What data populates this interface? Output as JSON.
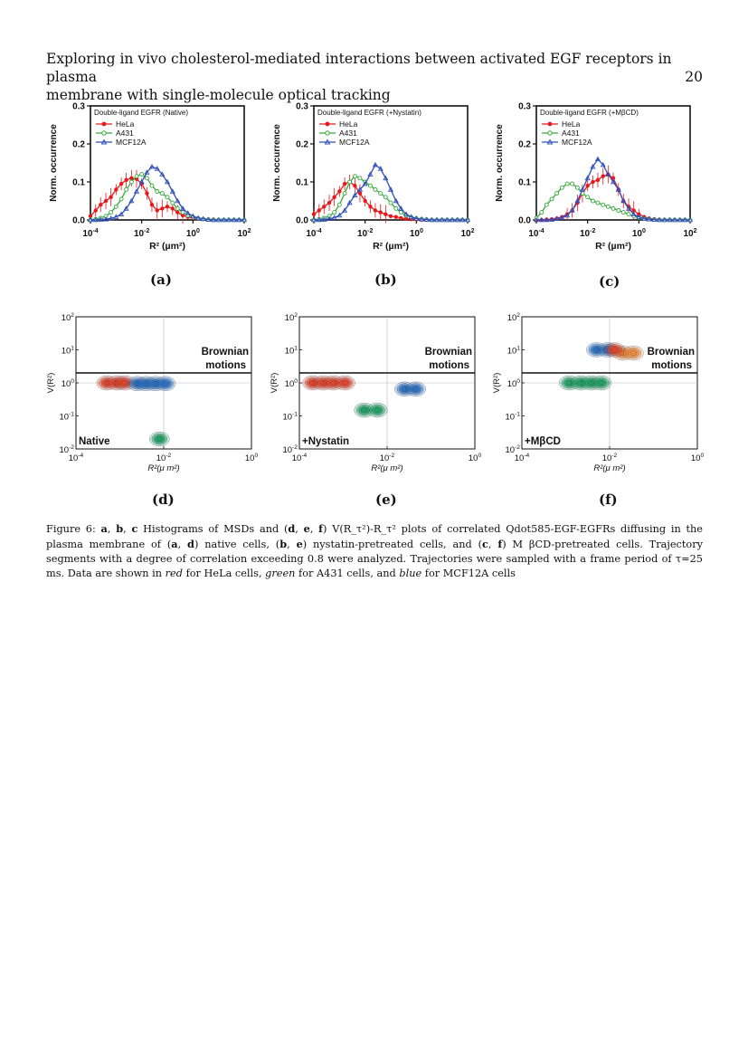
{
  "header": {
    "title_line1": "Exploring in vivo cholesterol-mediated interactions between activated EGF receptors in plasma",
    "title_line2": "membrane with single-molecule optical tracking",
    "page_number": "20"
  },
  "sublabels": [
    "(a)",
    "(b)",
    "(c)",
    "(d)",
    "(e)",
    "(f)"
  ],
  "chart_data": [
    {
      "id": "a",
      "type": "line",
      "title": "Double-ligand EGFR (Native)",
      "xlabel": "R² (µm²)",
      "ylabel": "Norm. occurrence",
      "xscale": "log",
      "xlim": [
        0.0001,
        100
      ],
      "ylim": [
        0,
        0.3
      ],
      "xticks": [
        "10-4",
        "10-2",
        "100",
        "102"
      ],
      "yticks": [
        "0.0",
        "0.1",
        "0.2",
        "0.3"
      ],
      "legend": "top-left",
      "series": [
        {
          "name": "HeLa",
          "color": "#e8191b",
          "x": [
            0.0001,
            0.00016,
            0.00025,
            0.0004,
            0.00063,
            0.001,
            0.0016,
            0.0025,
            0.004,
            0.0063,
            0.01,
            0.016,
            0.025,
            0.04,
            0.063,
            0.1,
            0.16,
            0.25,
            0.4,
            0.63,
            1,
            1.6,
            2.5,
            4,
            6.3,
            10,
            16,
            25,
            40,
            63,
            100
          ],
          "y": [
            0.01,
            0.025,
            0.04,
            0.05,
            0.06,
            0.08,
            0.095,
            0.105,
            0.11,
            0.108,
            0.095,
            0.07,
            0.04,
            0.025,
            0.03,
            0.035,
            0.03,
            0.02,
            0.012,
            0.008,
            0.005,
            0.003,
            0.002,
            0.001,
            0.001,
            0.0,
            0.0,
            0.0,
            0.0,
            0.0,
            0.0
          ]
        },
        {
          "name": "A431",
          "color": "#35a83a",
          "x": [
            0.0001,
            0.00016,
            0.00025,
            0.0004,
            0.00063,
            0.001,
            0.0016,
            0.0025,
            0.004,
            0.0063,
            0.01,
            0.016,
            0.025,
            0.04,
            0.063,
            0.1,
            0.16,
            0.25,
            0.4,
            0.63,
            1,
            1.6,
            2.5,
            4,
            6.3,
            10,
            16,
            25,
            40,
            63,
            100
          ],
          "y": [
            0.0,
            0.002,
            0.005,
            0.01,
            0.02,
            0.035,
            0.055,
            0.08,
            0.1,
            0.115,
            0.12,
            0.11,
            0.09,
            0.075,
            0.07,
            0.06,
            0.045,
            0.03,
            0.02,
            0.012,
            0.007,
            0.004,
            0.002,
            0.001,
            0.0,
            0.0,
            0.0,
            0.0,
            0.0,
            0.0,
            0.0
          ]
        },
        {
          "name": "MCF12A",
          "color": "#2f4fb8",
          "x": [
            0.0001,
            0.00016,
            0.00025,
            0.0004,
            0.00063,
            0.001,
            0.0016,
            0.0025,
            0.004,
            0.0063,
            0.01,
            0.016,
            0.025,
            0.04,
            0.063,
            0.1,
            0.16,
            0.25,
            0.4,
            0.63,
            1,
            1.6,
            2.5,
            4,
            6.3,
            10,
            16,
            25,
            40,
            63,
            100
          ],
          "y": [
            0.0,
            0.0,
            0.001,
            0.002,
            0.004,
            0.008,
            0.015,
            0.03,
            0.05,
            0.075,
            0.1,
            0.125,
            0.14,
            0.135,
            0.12,
            0.1,
            0.075,
            0.05,
            0.03,
            0.018,
            0.01,
            0.005,
            0.003,
            0.001,
            0.0,
            0.0,
            0.0,
            0.0,
            0.0,
            0.0,
            0.0
          ]
        }
      ]
    },
    {
      "id": "b",
      "type": "line",
      "title": "Double-ligand EGFR (+Nystatin)",
      "xlabel": "R² (µm²)",
      "ylabel": "Norm. occurrence",
      "xscale": "log",
      "xlim": [
        0.0001,
        100
      ],
      "ylim": [
        0,
        0.3
      ],
      "xticks": [
        "10-4",
        "10-2",
        "100",
        "102"
      ],
      "yticks": [
        "0.0",
        "0.1",
        "0.2",
        "0.3"
      ],
      "legend": "top-left",
      "series": [
        {
          "name": "HeLa",
          "color": "#e8191b",
          "x": [
            0.0001,
            0.00016,
            0.00025,
            0.0004,
            0.00063,
            0.001,
            0.0016,
            0.0025,
            0.004,
            0.0063,
            0.01,
            0.016,
            0.025,
            0.04,
            0.063,
            0.1,
            0.16,
            0.25,
            0.4,
            0.63,
            1,
            1.6,
            2.5,
            4,
            6.3,
            10,
            16,
            25,
            40,
            63,
            100
          ],
          "y": [
            0.015,
            0.025,
            0.035,
            0.045,
            0.06,
            0.075,
            0.095,
            0.1,
            0.09,
            0.07,
            0.05,
            0.035,
            0.025,
            0.02,
            0.015,
            0.01,
            0.008,
            0.005,
            0.003,
            0.002,
            0.001,
            0.0,
            0.0,
            0.0,
            0.0,
            0.0,
            0.0,
            0.0,
            0.0,
            0.0,
            0.0
          ]
        },
        {
          "name": "A431",
          "color": "#35a83a",
          "x": [
            0.0001,
            0.00016,
            0.00025,
            0.0004,
            0.00063,
            0.001,
            0.0016,
            0.0025,
            0.004,
            0.0063,
            0.01,
            0.016,
            0.025,
            0.04,
            0.063,
            0.1,
            0.16,
            0.25,
            0.4,
            0.63,
            1,
            1.6,
            2.5,
            4,
            6.3,
            10,
            16,
            25,
            40,
            63,
            100
          ],
          "y": [
            0.0,
            0.002,
            0.005,
            0.01,
            0.02,
            0.04,
            0.07,
            0.1,
            0.115,
            0.11,
            0.1,
            0.09,
            0.08,
            0.07,
            0.06,
            0.045,
            0.03,
            0.02,
            0.012,
            0.007,
            0.004,
            0.002,
            0.001,
            0.0,
            0.0,
            0.0,
            0.0,
            0.0,
            0.0,
            0.0,
            0.0
          ]
        },
        {
          "name": "MCF12A",
          "color": "#2f4fb8",
          "x": [
            0.0001,
            0.00016,
            0.00025,
            0.0004,
            0.00063,
            0.001,
            0.0016,
            0.0025,
            0.004,
            0.0063,
            0.01,
            0.016,
            0.025,
            0.04,
            0.063,
            0.1,
            0.16,
            0.25,
            0.4,
            0.63,
            1,
            1.6,
            2.5,
            4,
            6.3,
            10,
            16,
            25,
            40,
            63,
            100
          ],
          "y": [
            0.0,
            0.0,
            0.001,
            0.003,
            0.006,
            0.012,
            0.025,
            0.045,
            0.065,
            0.08,
            0.095,
            0.12,
            0.145,
            0.135,
            0.11,
            0.08,
            0.05,
            0.03,
            0.015,
            0.008,
            0.004,
            0.002,
            0.001,
            0.0,
            0.0,
            0.0,
            0.0,
            0.0,
            0.0,
            0.0,
            0.0
          ]
        }
      ]
    },
    {
      "id": "c",
      "type": "line",
      "title": "Double-ligand EGFR (+MβCD)",
      "xlabel": "R² (µm²)",
      "ylabel": "Norm. occurrence",
      "xscale": "log",
      "xlim": [
        0.0001,
        100
      ],
      "ylim": [
        0,
        0.3
      ],
      "xticks": [
        "10-4",
        "10-2",
        "100",
        "102"
      ],
      "yticks": [
        "0.0",
        "0.1",
        "0.2",
        "0.3"
      ],
      "legend": "top-left",
      "series": [
        {
          "name": "HeLa",
          "color": "#e8191b",
          "x": [
            0.0001,
            0.00016,
            0.00025,
            0.0004,
            0.00063,
            0.001,
            0.0016,
            0.0025,
            0.004,
            0.0063,
            0.01,
            0.016,
            0.025,
            0.04,
            0.063,
            0.1,
            0.16,
            0.25,
            0.4,
            0.63,
            1,
            1.6,
            2.5,
            4,
            6.3,
            10,
            16,
            25,
            40,
            63,
            100
          ],
          "y": [
            0.0,
            0.0,
            0.001,
            0.002,
            0.004,
            0.008,
            0.015,
            0.025,
            0.045,
            0.07,
            0.09,
            0.1,
            0.105,
            0.115,
            0.12,
            0.11,
            0.08,
            0.05,
            0.035,
            0.025,
            0.015,
            0.008,
            0.004,
            0.002,
            0.001,
            0.0,
            0.0,
            0.0,
            0.0,
            0.0,
            0.0
          ]
        },
        {
          "name": "A431",
          "color": "#35a83a",
          "x": [
            0.0001,
            0.00016,
            0.00025,
            0.0004,
            0.00063,
            0.001,
            0.0016,
            0.0025,
            0.004,
            0.0063,
            0.01,
            0.016,
            0.025,
            0.04,
            0.063,
            0.1,
            0.16,
            0.25,
            0.4,
            0.63,
            1,
            1.6,
            2.5,
            4,
            6.3,
            10,
            16,
            25,
            40,
            63,
            100
          ],
          "y": [
            0.005,
            0.02,
            0.04,
            0.055,
            0.07,
            0.085,
            0.095,
            0.095,
            0.085,
            0.07,
            0.06,
            0.05,
            0.045,
            0.04,
            0.035,
            0.03,
            0.025,
            0.02,
            0.015,
            0.01,
            0.006,
            0.004,
            0.002,
            0.001,
            0.0,
            0.0,
            0.0,
            0.0,
            0.0,
            0.0,
            0.0
          ]
        },
        {
          "name": "MCF12A",
          "color": "#2f4fb8",
          "x": [
            0.0001,
            0.00016,
            0.00025,
            0.0004,
            0.00063,
            0.001,
            0.0016,
            0.0025,
            0.004,
            0.0063,
            0.01,
            0.016,
            0.025,
            0.04,
            0.063,
            0.1,
            0.16,
            0.25,
            0.4,
            0.63,
            1,
            1.6,
            2.5,
            4,
            6.3,
            10,
            16,
            25,
            40,
            63,
            100
          ],
          "y": [
            0.0,
            0.0,
            0.0,
            0.001,
            0.003,
            0.006,
            0.012,
            0.025,
            0.05,
            0.08,
            0.11,
            0.14,
            0.16,
            0.145,
            0.12,
            0.1,
            0.08,
            0.05,
            0.03,
            0.015,
            0.008,
            0.004,
            0.002,
            0.001,
            0.0,
            0.0,
            0.0,
            0.0,
            0.0,
            0.0,
            0.0
          ]
        }
      ]
    },
    {
      "id": "d",
      "type": "heatmap",
      "label": "Native",
      "annotation": "Brownian motions",
      "annotation_line1": "Brownian",
      "annotation_line2": "motions",
      "xlabel": "R²(μ m²)",
      "ylabel": "V(R²)",
      "xscale": "log",
      "yscale": "log",
      "xlim": [
        0.0001,
        1
      ],
      "ylim": [
        0.01,
        100
      ],
      "xticks": [
        "10-4",
        "10-2",
        "100"
      ],
      "yticks": [
        "10-2",
        "10-1",
        "100",
        "101",
        "102"
      ],
      "threshold_y": 2,
      "clusters": [
        {
          "color": "#e1452a",
          "x": [
            0.0005,
            0.00085,
            0.0013
          ],
          "y": 1.0
        },
        {
          "color": "#2e6fc0",
          "x": [
            0.0025,
            0.004,
            0.0065,
            0.011
          ],
          "y": 0.95
        },
        {
          "color": "#22a064",
          "x": [
            0.008
          ],
          "y": 0.02
        }
      ]
    },
    {
      "id": "e",
      "type": "heatmap",
      "label": "+Nystatin",
      "annotation": "Brownian motions",
      "annotation_line1": "Brownian",
      "annotation_line2": "motions",
      "xlabel": "R²(μ m²)",
      "ylabel": "V(R²)",
      "xscale": "log",
      "yscale": "log",
      "xlim": [
        0.0001,
        1
      ],
      "ylim": [
        0.01,
        100
      ],
      "xticks": [
        "10-4",
        "10-2",
        "100"
      ],
      "yticks": [
        "10-2",
        "10-1",
        "100",
        "101",
        "102"
      ],
      "threshold_y": 2,
      "clusters": [
        {
          "color": "#e1452a",
          "x": [
            0.0002,
            0.00035,
            0.0006,
            0.0011
          ],
          "y": 1.0
        },
        {
          "color": "#22a064",
          "x": [
            0.003,
            0.006
          ],
          "y": 0.15
        },
        {
          "color": "#2e6fc0",
          "x": [
            0.025,
            0.045
          ],
          "y": 0.65
        }
      ]
    },
    {
      "id": "f",
      "type": "heatmap",
      "label": "+MβCD",
      "annotation": "Brownian motions",
      "annotation_line1": "Brownian",
      "annotation_line2": "motions",
      "xlabel": "R²(μ m²)",
      "ylabel": "V(R²)",
      "xscale": "log",
      "yscale": "log",
      "xlim": [
        0.0001,
        1
      ],
      "ylim": [
        0.01,
        100
      ],
      "xticks": [
        "10-4",
        "10-2",
        "100"
      ],
      "yticks": [
        "10-2",
        "10-1",
        "100",
        "101",
        "102"
      ],
      "threshold_y": 2,
      "clusters": [
        {
          "color": "#22a064",
          "x": [
            0.0012,
            0.0022,
            0.0038,
            0.0065
          ],
          "y": 1.0
        },
        {
          "color": "#2e6fc0",
          "x": [
            0.005,
            0.009
          ],
          "y": 10
        },
        {
          "color": "#f08a3a",
          "x": [
            0.02,
            0.035
          ],
          "y": 8
        },
        {
          "color": "#e1452a",
          "x": [
            0.013
          ],
          "y": 10
        }
      ]
    }
  ],
  "caption": {
    "fig": "Figure 6: ",
    "b1": "a",
    "t1": ", ",
    "b2": "b",
    "t2": ", ",
    "b3": "c",
    "t3": " Histograms of MSDs and (",
    "b4": "d",
    "t4": ", ",
    "b5": "e",
    "t5": ", ",
    "b6": "f",
    "t6": ") V(R_τ²)-R_τ² plots of correlated Qdot585-EGF-EGFRs diffusing in the plasma membrane of (",
    "b7": "a",
    "t7": ", ",
    "b8": "d",
    "t8": ") native cells, (",
    "b9": "b",
    "t9": ", ",
    "b10": "e",
    "t10": ") nystatin-pretreated cells, and (",
    "b11": "c",
    "t11": ", ",
    "b12": "f",
    "t12": ") M βCD-pretreated cells. Trajectory segments with a degree of correlation exceeding 0.8 were analyzed. Trajectories were sampled with a frame period of τ=25 ms. Data are shown in ",
    "i1": "red",
    "t13": " for HeLa cells, ",
    "i2": "green",
    "t14": " for A431 cells, and ",
    "i3": "blue",
    "t15": " for MCF12A cells"
  }
}
